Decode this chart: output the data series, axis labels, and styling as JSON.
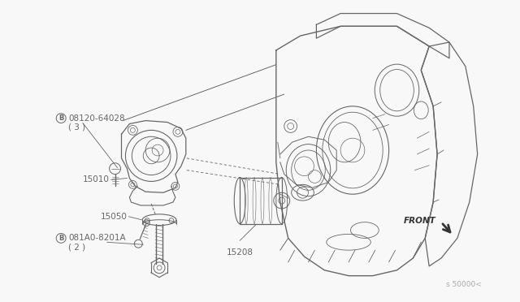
{
  "bg_color": "#f8f8f8",
  "line_color": "#aaaaaa",
  "dark_line": "#666666",
  "black_line": "#333333",
  "figsize": [
    6.4,
    3.72
  ],
  "dpi": 100,
  "labels": {
    "bolt1_num": "08120-64028",
    "bolt1_qty": "( 3 )",
    "bolt2_num": "081A0-8201A",
    "bolt2_qty": "( 2 )",
    "part15010": "15010",
    "part15050": "15050",
    "part15208": "15208",
    "front": "FRONT",
    "diag_num": "s 50000<"
  }
}
